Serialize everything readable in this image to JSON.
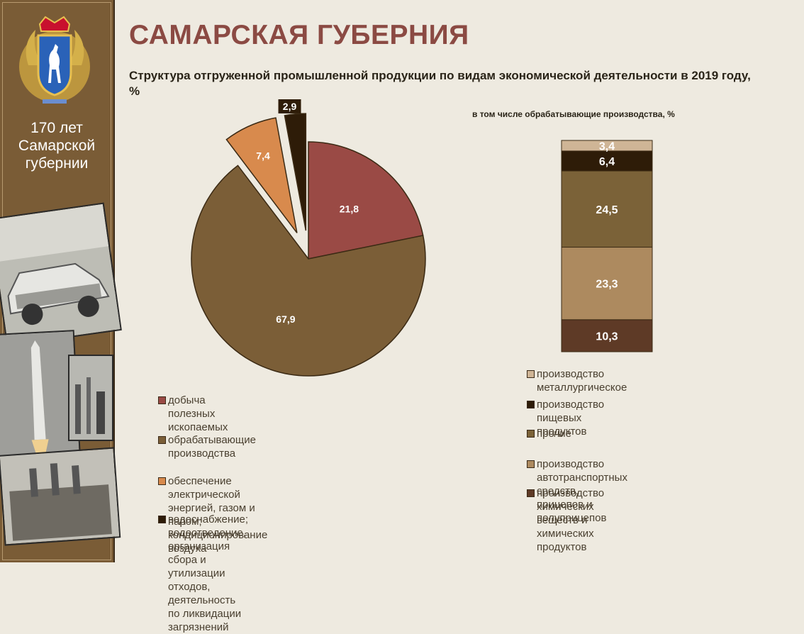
{
  "header": {
    "title": "САМАРСКАЯ ГУБЕРНИЯ",
    "subtitle": "Структура отгруженной промышленной продукции по видам экономической деятельности в 2019 году, %"
  },
  "sidebar": {
    "anniversary_lines": [
      "170 лет",
      "Самарской",
      "губернии"
    ]
  },
  "colors": {
    "sidebar": "#7a5c36",
    "title": "#8b4a43",
    "background": "#eeeae0"
  },
  "chart_data": [
    {
      "type": "pie",
      "title": "",
      "slices": [
        {
          "label": "добыча полезных ископаемых",
          "value": 21.8,
          "display": "21,8",
          "color": "#9a4a45",
          "exploded": false
        },
        {
          "label": "обрабатывающие производства",
          "value": 67.9,
          "display": "67,9",
          "color": "#7b5e37",
          "exploded": false
        },
        {
          "label": "обеспечение электрической энергией, газом и паром; кондиционирование воздуха",
          "value": 7.4,
          "display": "7,4",
          "color": "#d88a4d",
          "exploded": true
        },
        {
          "label": "водоснабжение; водоотведение, организация сбора и утилизации отходов, деятельность по ликвидации загрязнений",
          "value": 2.9,
          "display": "2,9",
          "color": "#2e1c08",
          "exploded": true
        }
      ],
      "legend_lines": [
        [
          "добыча полезных ископаемых"
        ],
        [
          "обрабатывающие производства"
        ],
        [
          "обеспечение электрической энергией, газом и паром;",
          "кондиционирование  воздуха"
        ],
        [
          "водоснабжение; водоотведение, организация сбора и",
          "утилизации отходов, деятельность по ликвидации",
          "загрязнений"
        ]
      ]
    },
    {
      "type": "bar",
      "stacked": true,
      "title": "в том  числе обрабатывающие производства, %",
      "series": [
        {
          "name": "производство химических  веществ и химических  продуктов",
          "value": 10.3,
          "display": "10,3",
          "color": "#5e3a26"
        },
        {
          "name": "производство автотранспортных средств, прицепов и полуприцепов",
          "value": 23.3,
          "display": "23,3",
          "color": "#ad8a5f"
        },
        {
          "name": "прочие",
          "value": 24.5,
          "display": "24,5",
          "color": "#7b6238"
        },
        {
          "name": "производство пищевых продуктов",
          "value": 6.4,
          "display": "6,4",
          "color": "#2e1c08"
        },
        {
          "name": "производство металлургическое",
          "value": 3.4,
          "display": "3,4",
          "color": "#cfb596"
        }
      ],
      "legend_lines": [
        [
          "производство металлургическое"
        ],
        [
          "производство пищевых  продуктов"
        ],
        [
          "прочие"
        ],
        [
          "производство автотранспортных средств,",
          "прицепов и полуприцепов"
        ],
        [
          "производство химических  веществ и",
          "химических  продуктов"
        ]
      ]
    }
  ]
}
